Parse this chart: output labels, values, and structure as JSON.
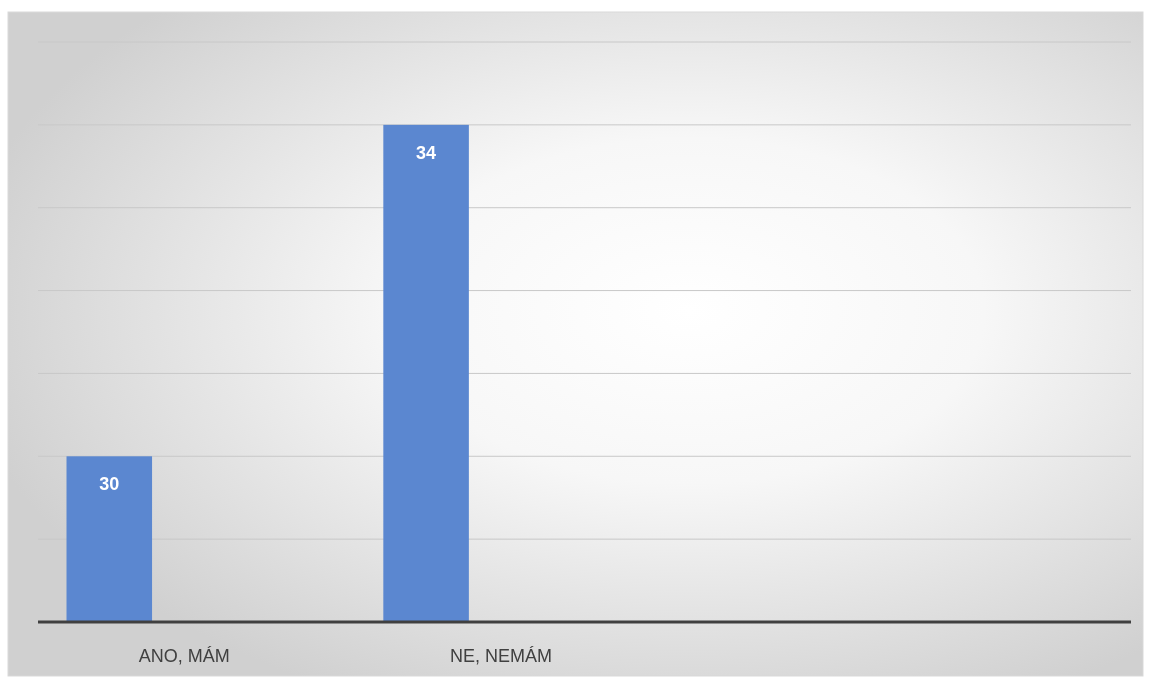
{
  "chart_data": {
    "type": "bar",
    "categories": [
      "ANO, MÁM",
      "NE, NEMÁM",
      null,
      null
    ],
    "values": [
      30,
      34,
      null,
      null
    ],
    "color": "#5b87d0",
    "ylim": [
      28,
      35
    ],
    "yticks": [
      {
        "value": 28,
        "label": null
      },
      {
        "value": 29,
        "label": null
      },
      {
        "value": 30,
        "label": null
      },
      {
        "value": 31,
        "label": null
      },
      {
        "value": 32,
        "label": null
      },
      {
        "value": 33,
        "label": null
      },
      {
        "value": 34,
        "label": null
      },
      {
        "value": 35,
        "label": null
      }
    ],
    "grid": true,
    "data_labels": true,
    "tick_labels": "x"
  }
}
